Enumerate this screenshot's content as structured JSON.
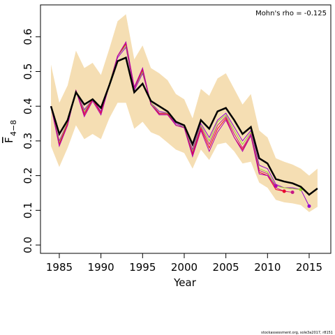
{
  "chart_data": {
    "type": "line",
    "annotation": "Mohn's rho = -0.125",
    "xlabel": "Year",
    "ylabel": "F",
    "ylabel_subscript": "4−8",
    "footer": "stockassessment.org, sole3a2017, r8151",
    "x": [
      1984,
      1985,
      1986,
      1987,
      1988,
      1989,
      1990,
      1991,
      1992,
      1993,
      1994,
      1995,
      1996,
      1997,
      1998,
      1999,
      2000,
      2001,
      2002,
      2003,
      2004,
      2005,
      2006,
      2007,
      2008,
      2009,
      2010,
      2011,
      2012,
      2013,
      2014,
      2015,
      2016
    ],
    "xlim": [
      1982.74,
      2017.6
    ],
    "xticks": [
      1985,
      1990,
      1995,
      2000,
      2005,
      2010,
      2015
    ],
    "ylim": [
      -0.024,
      0.692
    ],
    "yticks": [
      {
        "value": 0,
        "label": "0.0"
      },
      0.1,
      0.2,
      0.3,
      0.4,
      0.5,
      0.6
    ],
    "band": {
      "color": "#f5deb3",
      "upper": [
        0.52,
        0.41,
        0.46,
        0.56,
        0.51,
        0.525,
        0.49,
        0.565,
        0.645,
        0.665,
        0.535,
        0.575,
        0.51,
        0.495,
        0.475,
        0.435,
        0.42,
        0.365,
        0.45,
        0.43,
        0.48,
        0.495,
        0.45,
        0.405,
        0.435,
        0.33,
        0.31,
        0.25,
        0.24,
        0.232,
        0.22,
        0.2,
        0.22
      ],
      "lower": [
        0.285,
        0.225,
        0.28,
        0.345,
        0.305,
        0.32,
        0.305,
        0.365,
        0.41,
        0.41,
        0.335,
        0.355,
        0.325,
        0.315,
        0.295,
        0.275,
        0.265,
        0.22,
        0.275,
        0.245,
        0.29,
        0.295,
        0.27,
        0.235,
        0.24,
        0.18,
        0.165,
        0.13,
        0.123,
        0.12,
        0.115,
        0.095,
        0.11
      ]
    },
    "series": [
      {
        "color": "#9400d3",
        "values": [
          0.4,
          0.3,
          0.355,
          0.445,
          0.39,
          0.42,
          0.385,
          0.465,
          0.54,
          0.57,
          0.445,
          0.495,
          0.41,
          0.385,
          0.38,
          0.35,
          0.34,
          0.275,
          0.35,
          0.31,
          0.36,
          0.38,
          0.34,
          0.3,
          0.33,
          0.23,
          0.22,
          0.175,
          0.165,
          0.165,
          0.16,
          0.112,
          null
        ]
      },
      {
        "color": "#9acd32",
        "values": [
          0.4,
          0.295,
          0.355,
          0.445,
          0.385,
          0.42,
          0.38,
          0.465,
          0.545,
          0.575,
          0.45,
          0.5,
          0.41,
          0.38,
          0.38,
          0.345,
          0.34,
          0.27,
          0.345,
          0.3,
          0.355,
          0.375,
          0.33,
          0.29,
          0.325,
          0.22,
          0.21,
          0.17,
          0.165,
          0.162,
          0.16,
          null,
          null
        ]
      },
      {
        "color": "#c71585",
        "values": [
          0.4,
          0.29,
          0.35,
          0.445,
          0.38,
          0.42,
          0.38,
          0.46,
          0.545,
          0.58,
          0.45,
          0.505,
          0.405,
          0.38,
          0.378,
          0.345,
          0.338,
          0.265,
          0.34,
          0.29,
          0.345,
          0.37,
          0.32,
          0.28,
          0.32,
          0.215,
          0.205,
          0.165,
          0.155,
          0.152,
          null,
          null,
          null
        ]
      },
      {
        "color": "#e8002a",
        "values": [
          0.4,
          0.29,
          0.35,
          0.445,
          0.375,
          0.42,
          0.38,
          0.46,
          0.545,
          0.58,
          0.455,
          0.505,
          0.405,
          0.378,
          0.378,
          0.345,
          0.338,
          0.26,
          0.335,
          0.28,
          0.335,
          0.365,
          0.31,
          0.275,
          0.315,
          0.21,
          0.2,
          0.16,
          0.155,
          null,
          null,
          null,
          null
        ]
      },
      {
        "color": "#b000b0",
        "values": [
          0.4,
          0.285,
          0.345,
          0.445,
          0.37,
          0.415,
          0.375,
          0.46,
          0.545,
          0.585,
          0.455,
          0.51,
          0.405,
          0.375,
          0.375,
          0.345,
          0.338,
          0.255,
          0.33,
          0.27,
          0.325,
          0.36,
          0.31,
          0.27,
          0.315,
          0.205,
          0.2,
          0.17,
          null,
          null,
          null,
          null,
          null
        ]
      },
      {
        "color": "#000000",
        "values": [
          0.4,
          0.32,
          0.36,
          0.44,
          0.405,
          0.42,
          0.395,
          0.46,
          0.53,
          0.54,
          0.44,
          0.465,
          0.415,
          0.4,
          0.385,
          0.355,
          0.345,
          0.29,
          0.36,
          0.335,
          0.385,
          0.395,
          0.36,
          0.32,
          0.34,
          0.25,
          0.235,
          0.19,
          0.183,
          0.178,
          0.168,
          0.145,
          0.163
        ]
      }
    ]
  }
}
